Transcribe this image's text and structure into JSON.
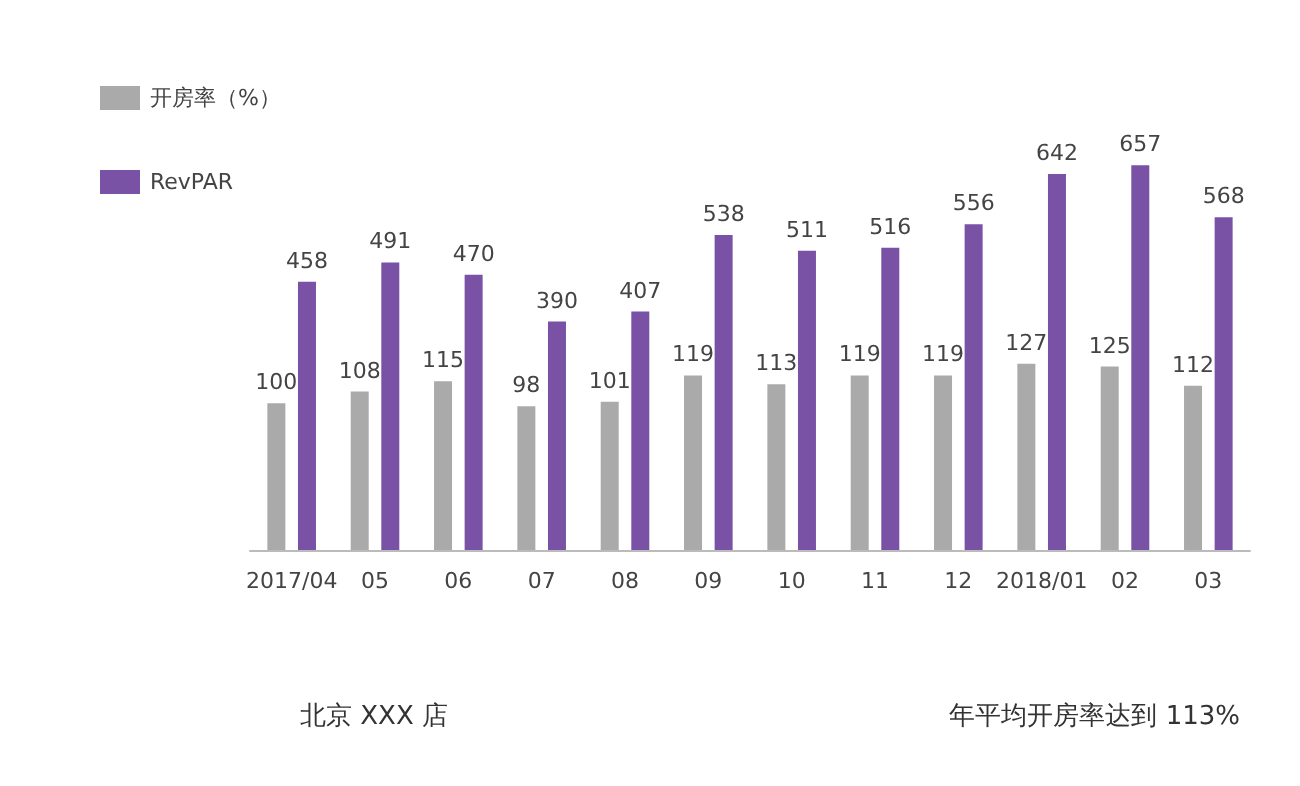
{
  "chart_data": {
    "type": "bar",
    "categories": [
      "2017/04",
      "05",
      "06",
      "07",
      "08",
      "09",
      "10",
      "11",
      "12",
      "2018/01",
      "02",
      "03"
    ],
    "series": [
      {
        "name": "开房率（%）",
        "color": "#aaaaaa",
        "axis": "y2",
        "values": [
          100,
          108,
          115,
          98,
          101,
          119,
          113,
          119,
          119,
          127,
          125,
          112
        ]
      },
      {
        "name": "RevPAR",
        "color": "#7952a6",
        "values": [
          458,
          491,
          470,
          390,
          407,
          538,
          511,
          516,
          556,
          642,
          657,
          568
        ]
      }
    ],
    "tick_labels": "x",
    "data_labels": true,
    "legend": "top left",
    "annotations": [
      "北京 XXX 店",
      "年平均开房率达到 113%"
    ]
  }
}
